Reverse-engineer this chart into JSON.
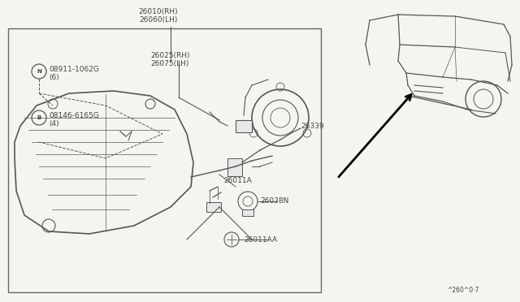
{
  "bg_color": "#f5f5f0",
  "box_color": "#555555",
  "line_color": "#555555",
  "text_color": "#444444",
  "fig_width": 6.4,
  "fig_height": 3.72,
  "dpi": 100,
  "part_label_top": "26010(RH)\n26060(LH)",
  "part_N_label": "N 08911-1062G\n   (6)",
  "part_B_label": "B 08146-6165G\n    (4)",
  "part_26025_label": "26025(RH)\n26075(LH)",
  "part_26339_label": "26339",
  "part_26011A_label": "26011A",
  "part_26038N_label": "26038N",
  "part_26011AA_label": "26011AA",
  "footnote": "^260^0·7"
}
